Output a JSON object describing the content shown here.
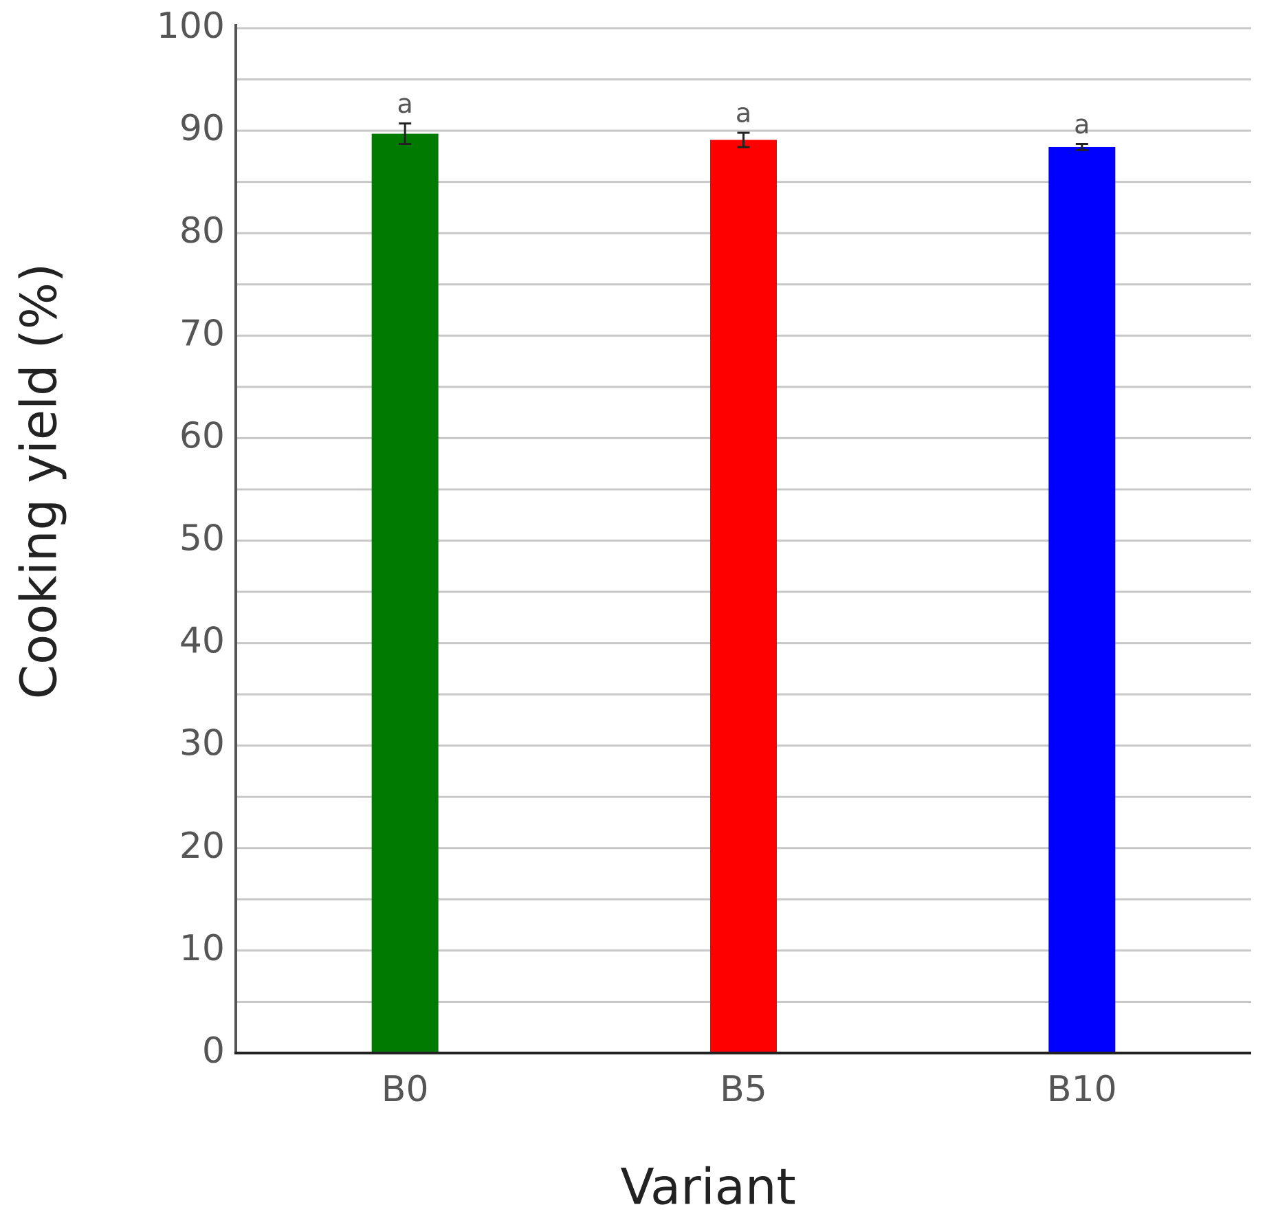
{
  "chart_data": {
    "type": "bar",
    "x_label": "Variant",
    "y_label": "Cooking yield (%)",
    "categories": [
      "B0",
      "B5",
      "B10"
    ],
    "values": [
      89.7,
      89.1,
      88.4
    ],
    "errors": [
      1.0,
      0.7,
      0.3
    ],
    "significance_labels": [
      "a",
      "a",
      "a"
    ],
    "colors": [
      "#007a00",
      "#ff0000",
      "#0000ff"
    ],
    "ylim": [
      0,
      100
    ],
    "yticks": [
      0,
      10,
      20,
      30,
      40,
      50,
      60,
      70,
      80,
      90,
      100
    ],
    "minor_gridlines": [
      5,
      15,
      25,
      35,
      45,
      55,
      65,
      75,
      85,
      95
    ],
    "grid": true
  }
}
